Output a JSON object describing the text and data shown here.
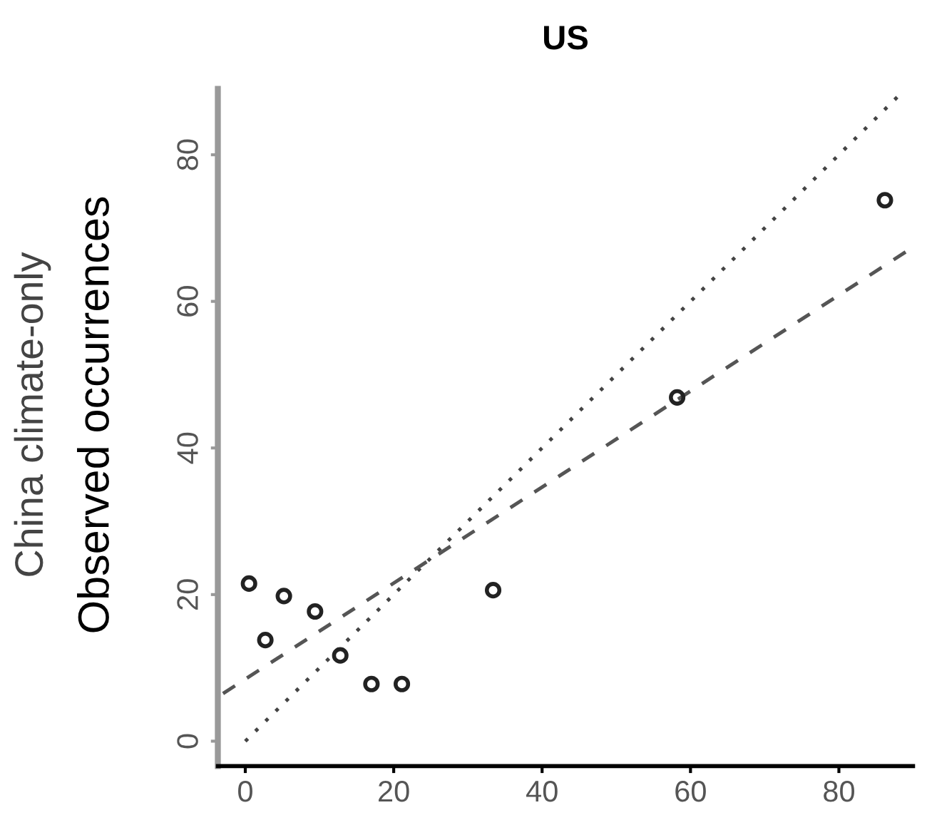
{
  "chart_data": {
    "type": "scatter",
    "title": "US",
    "xlabel": null,
    "ylabel": "China climate-only\nObserved occurrences",
    "xlim": [
      -3.7,
      90
    ],
    "ylim": [
      -3.4,
      89
    ],
    "xticks": [
      0,
      20,
      40,
      60,
      80
    ],
    "yticks": [
      0,
      20,
      40,
      60,
      80
    ],
    "grid": false,
    "legend": false,
    "marker": "circle",
    "series": [
      {
        "color": "#222222",
        "x": [
          0.5,
          5.2,
          9.4,
          2.7,
          12.8,
          17.0,
          21.1,
          33.4,
          58.2,
          86.2
        ],
        "values": [
          21.5,
          19.8,
          17.7,
          13.8,
          11.7,
          7.8,
          7.8,
          20.6,
          46.9,
          73.8
        ]
      },
      {
        "type": "line",
        "color": "#444444",
        "line_style": "dotted",
        "marker": "none",
        "x": [
          0,
          88
        ],
        "values": [
          0,
          88
        ]
      },
      {
        "type": "line",
        "color": "#555555",
        "line_style": "dashed",
        "marker": "none",
        "x": [
          -3,
          90
        ],
        "values": [
          6.5,
          67.4
        ]
      }
    ]
  }
}
